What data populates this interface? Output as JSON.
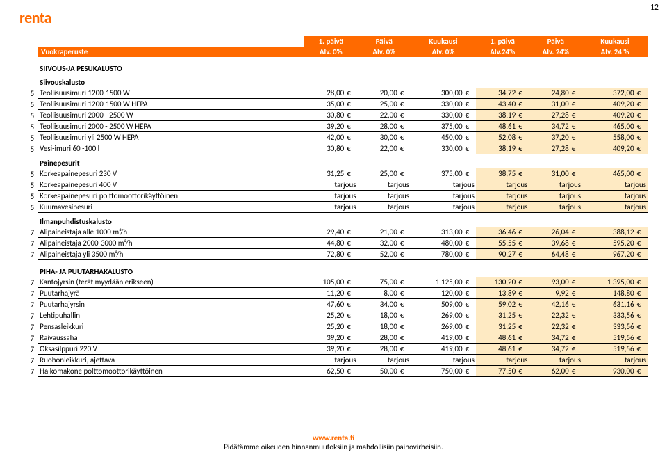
{
  "brand": {
    "logo_text": "renta",
    "accent": "#ff6a00"
  },
  "page_number": "12",
  "columns": {
    "desc_header": "Vuokraperuste",
    "price_headers_line1": [
      "1. päivä",
      "Päivä",
      "Kuukausi",
      "1. päivä",
      "Päivä",
      "Kuukausi"
    ],
    "price_headers_line2": [
      "Alv. 0%",
      "Alv. 0%",
      "Alv. 0%",
      "Alv.24%",
      "Alv. 24%",
      "Alv. 24 %"
    ]
  },
  "highlight_color": "#feeac3",
  "currency": "€",
  "sections": [
    {
      "category": "SIIVOUS-JA PESUKALUSTO",
      "groups": [
        {
          "title": "Siivouskalusto",
          "rows": [
            {
              "idx": "5",
              "desc": "Teollisuusimuri 1200-1500 W",
              "v": [
                "28,00",
                "20,00",
                "300,00",
                "34,72",
                "24,80",
                "372,00"
              ]
            },
            {
              "idx": "5",
              "desc": "Teollisuusimuri 1200-1500 W HEPA",
              "v": [
                "35,00",
                "25,00",
                "330,00",
                "43,40",
                "31,00",
                "409,20"
              ]
            },
            {
              "idx": "5",
              "desc": "Teollisuusimuri 2000 - 2500 W",
              "v": [
                "30,80",
                "22,00",
                "330,00",
                "38,19",
                "27,28",
                "409,20"
              ]
            },
            {
              "idx": "5",
              "desc": "Teollisuusimuri 2000 - 2500 W HEPA",
              "v": [
                "39,20",
                "28,00",
                "375,00",
                "48,61",
                "34,72",
                "465,00"
              ]
            },
            {
              "idx": "5",
              "desc": "Teollisuusimuri yli 2500 W HEPA",
              "v": [
                "42,00",
                "30,00",
                "450,00",
                "52,08",
                "37,20",
                "558,00"
              ]
            },
            {
              "idx": "5",
              "desc": "Vesi-imuri 60 -100 l",
              "v": [
                "30,80",
                "22,00",
                "330,00",
                "38,19",
                "27,28",
                "409,20"
              ]
            }
          ]
        },
        {
          "title": "Painepesurit",
          "rows": [
            {
              "idx": "5",
              "desc": "Korkeapainepesuri 230 V",
              "v": [
                "31,25",
                "25,00",
                "375,00",
                "38,75",
                "31,00",
                "465,00"
              ]
            },
            {
              "idx": "5",
              "desc": "Korkeapainepesuri 400 V",
              "v": [
                "tarjous",
                "tarjous",
                "tarjous",
                "tarjous",
                "tarjous",
                "tarjous"
              ],
              "textual": true
            },
            {
              "idx": "5",
              "desc": "Korkeapainepesuri polttomoottorikäyttöinen",
              "v": [
                "tarjous",
                "tarjous",
                "tarjous",
                "tarjous",
                "tarjous",
                "tarjous"
              ],
              "textual": true
            },
            {
              "idx": "5",
              "desc": "Kuumavesipesuri",
              "v": [
                "tarjous",
                "tarjous",
                "tarjous",
                "tarjous",
                "tarjous",
                "tarjous"
              ],
              "textual": true
            }
          ]
        },
        {
          "title": "Ilmanpuhdistuskalusto",
          "rows": [
            {
              "idx": "7",
              "desc": "Alipaineistaja alle 1000 m³/h",
              "v": [
                "29,40",
                "21,00",
                "313,00",
                "36,46",
                "26,04",
                "388,12"
              ]
            },
            {
              "idx": "7",
              "desc": "Alipaineistaja 2000-3000 m³/h",
              "v": [
                "44,80",
                "32,00",
                "480,00",
                "55,55",
                "39,68",
                "595,20"
              ]
            },
            {
              "idx": "7",
              "desc": "Alipaineistaja yli 3500 m³/h",
              "v": [
                "72,80",
                "52,00",
                "780,00",
                "90,27",
                "64,48",
                "967,20"
              ]
            }
          ]
        }
      ]
    },
    {
      "category": "PIHA- JA PUUTARHAKALUSTO",
      "groups": [
        {
          "title": "",
          "rows": [
            {
              "idx": "7",
              "desc": "Kantojyrsin (terät myydään erikseen)",
              "v": [
                "105,00",
                "75,00",
                "1 125,00",
                "130,20",
                "93,00",
                "1 395,00"
              ]
            },
            {
              "idx": "7",
              "desc": "Puutarhajyrä",
              "v": [
                "11,20",
                "8,00",
                "120,00",
                "13,89",
                "9,92",
                "148,80"
              ]
            },
            {
              "idx": "7",
              "desc": "Puutarhajyrsin",
              "v": [
                "47,60",
                "34,00",
                "509,00",
                "59,02",
                "42,16",
                "631,16"
              ]
            },
            {
              "idx": "7",
              "desc": "Lehtipuhallin",
              "v": [
                "25,20",
                "18,00",
                "269,00",
                "31,25",
                "22,32",
                "333,56"
              ]
            },
            {
              "idx": "7",
              "desc": "Pensasleikkuri",
              "v": [
                "25,20",
                "18,00",
                "269,00",
                "31,25",
                "22,32",
                "333,56"
              ]
            },
            {
              "idx": "7",
              "desc": "Raivaussaha",
              "v": [
                "39,20",
                "28,00",
                "419,00",
                "48,61",
                "34,72",
                "519,56"
              ]
            },
            {
              "idx": "7",
              "desc": "Oksasilppuri 220 V",
              "v": [
                "39,20",
                "28,00",
                "419,00",
                "48,61",
                "34,72",
                "519,56"
              ]
            },
            {
              "idx": "7",
              "desc": "Ruohonleikkuri, ajettava",
              "v": [
                "tarjous",
                "tarjous",
                "tarjous",
                "tarjous",
                "tarjous",
                "tarjous"
              ],
              "textual": true
            },
            {
              "idx": "7",
              "desc": "Halkomakone polttomoottorikäyttöinen",
              "v": [
                "62,50",
                "50,00",
                "750,00",
                "77,50",
                "62,00",
                "930,00"
              ]
            }
          ]
        }
      ]
    }
  ],
  "footer": {
    "link": "www.renta.fi",
    "disclaimer": "Pidätämme oikeuden hinnanmuutoksiin ja mahdollisiin painovirheisiin."
  }
}
